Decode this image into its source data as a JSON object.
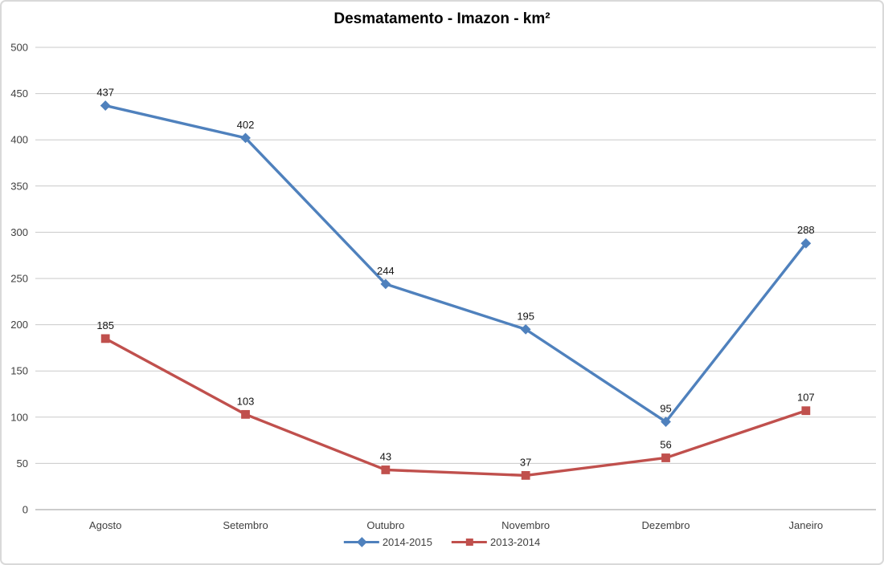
{
  "chart_data": {
    "type": "line",
    "title": "Desmatamento - Imazon - km²",
    "categories": [
      "Agosto",
      "Setembro",
      "Outubro",
      "Novembro",
      "Dezembro",
      "Janeiro"
    ],
    "series": [
      {
        "name": "2014-2015",
        "color": "#4F81BD",
        "marker": "diamond",
        "values": [
          437,
          402,
          244,
          195,
          95,
          288
        ]
      },
      {
        "name": "2013-2014",
        "color": "#C0504D",
        "marker": "square",
        "values": [
          185,
          103,
          43,
          37,
          56,
          107
        ]
      }
    ],
    "xlabel": "",
    "ylabel": "",
    "ylim": [
      0,
      500
    ],
    "ytick_step": 50,
    "grid": "horizontal",
    "gridline_color": "#c9c9c9",
    "axis_line_color": "#9a9a9a",
    "legend_position": "bottom",
    "data_labels": true
  }
}
